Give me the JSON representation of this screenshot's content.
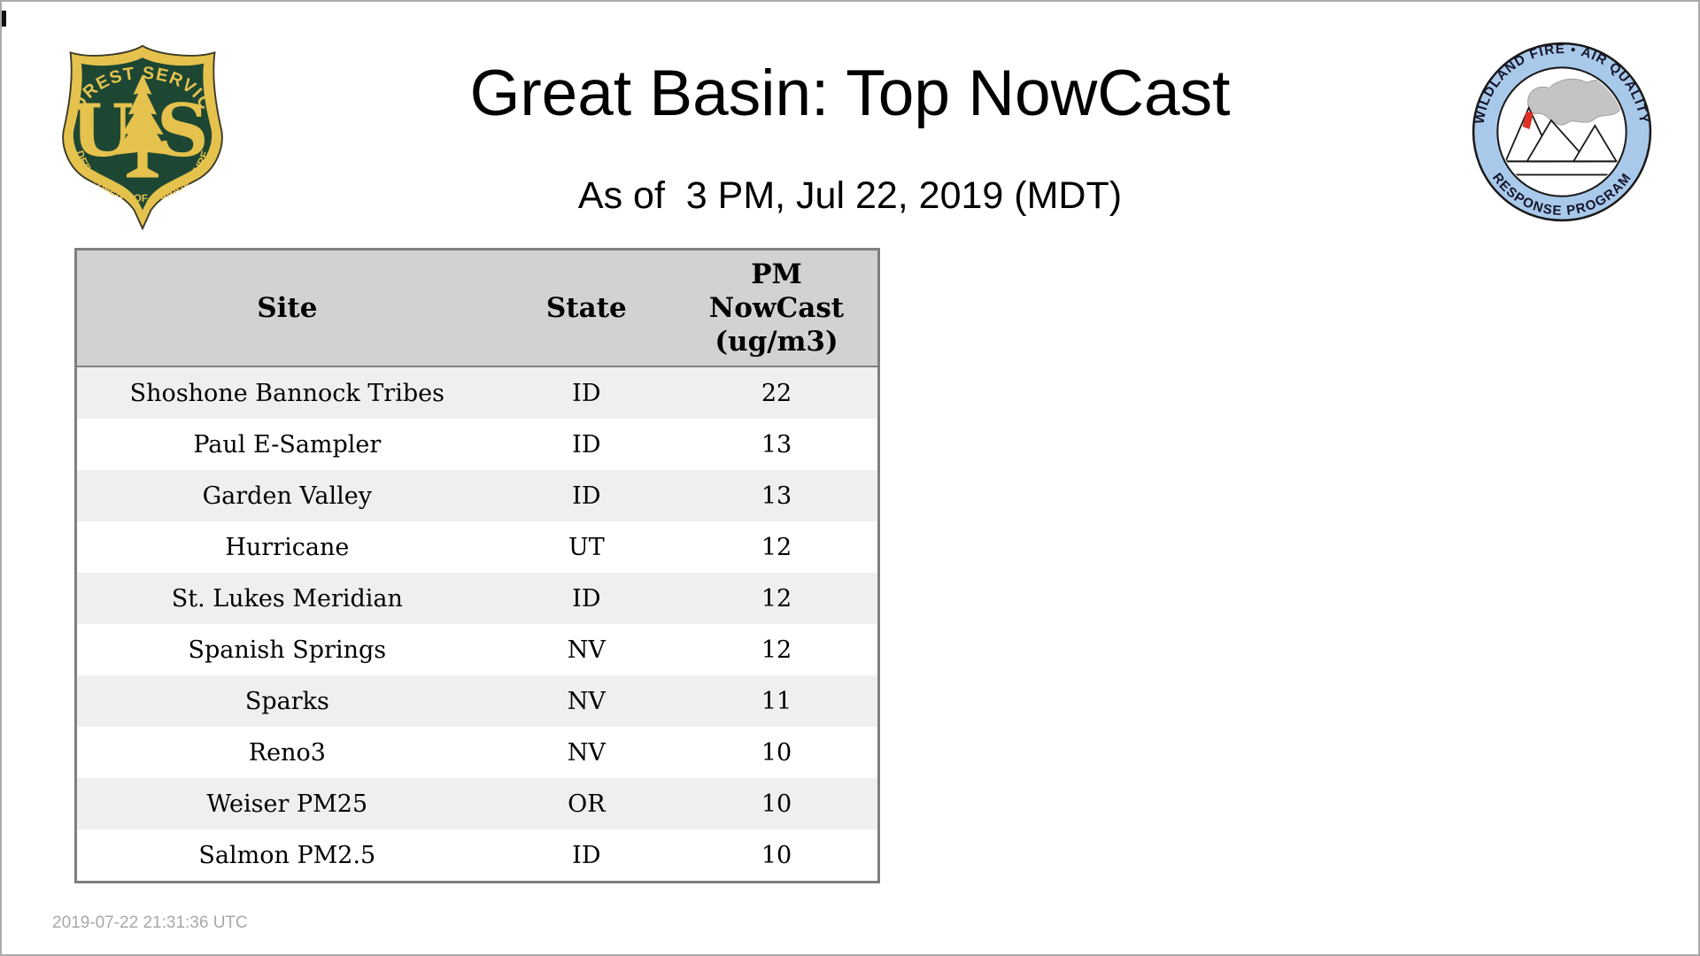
{
  "page": {
    "title": "Great Basin: Top NowCast",
    "subtitle": "As of  3 PM, Jul 22, 2019 (MDT)",
    "footer_timestamp": "2019-07-22 21:31:36 UTC",
    "background": "#ffffff",
    "border_color": "#ababab"
  },
  "forest_service_logo": {
    "top_arc": "FOREST SERVICE",
    "left_letter": "U",
    "right_letter": "S",
    "bottom_arc": "DEPARTMENT OF AGRICULTURE",
    "green": "#1e4733",
    "gold": "#e5c24d"
  },
  "airfire_logo": {
    "top_arc": "WILDLAND FIRE • AIR QUALITY",
    "bottom_arc": "RESPONSE PROGRAM",
    "ring_color": "#a9c9ea",
    "smoke_color": "#c4c4c4",
    "flame_color": "#dc2f26"
  },
  "table": {
    "header": {
      "site": "Site",
      "state": "State",
      "pm": "PM\nNowCast\n(ug/m3)"
    },
    "rows": [
      {
        "site": "Shoshone Bannock Tribes",
        "state": "ID",
        "value": "22"
      },
      {
        "site": "Paul E-Sampler",
        "state": "ID",
        "value": "13"
      },
      {
        "site": "Garden Valley",
        "state": "ID",
        "value": "13"
      },
      {
        "site": "Hurricane",
        "state": "UT",
        "value": "12"
      },
      {
        "site": "St. Lukes Meridian",
        "state": "ID",
        "value": "12"
      },
      {
        "site": "Spanish Springs",
        "state": "NV",
        "value": "12"
      },
      {
        "site": "Sparks",
        "state": "NV",
        "value": "11"
      },
      {
        "site": "Reno3",
        "state": "NV",
        "value": "10"
      },
      {
        "site": "Weiser PM25",
        "state": "OR",
        "value": "10"
      },
      {
        "site": "Salmon PM2.5",
        "state": "ID",
        "value": "10"
      }
    ],
    "header_bg": "#d2d2d2",
    "stripe_bg": "#efefef",
    "border_color": "#7f7f7f"
  },
  "chart_data": {
    "type": "table",
    "title": "Great Basin: Top NowCast",
    "subtitle": "As of 3 PM, Jul 22, 2019 (MDT)",
    "columns": [
      "Site",
      "State",
      "PM NowCast (ug/m3)"
    ],
    "rows": [
      [
        "Shoshone Bannock Tribes",
        "ID",
        22
      ],
      [
        "Paul E-Sampler",
        "ID",
        13
      ],
      [
        "Garden Valley",
        "ID",
        13
      ],
      [
        "Hurricane",
        "UT",
        12
      ],
      [
        "St. Lukes Meridian",
        "ID",
        12
      ],
      [
        "Spanish Springs",
        "NV",
        12
      ],
      [
        "Sparks",
        "NV",
        11
      ],
      [
        "Reno3",
        "NV",
        10
      ],
      [
        "Weiser PM25",
        "OR",
        10
      ],
      [
        "Salmon PM2.5",
        "ID",
        10
      ]
    ]
  }
}
